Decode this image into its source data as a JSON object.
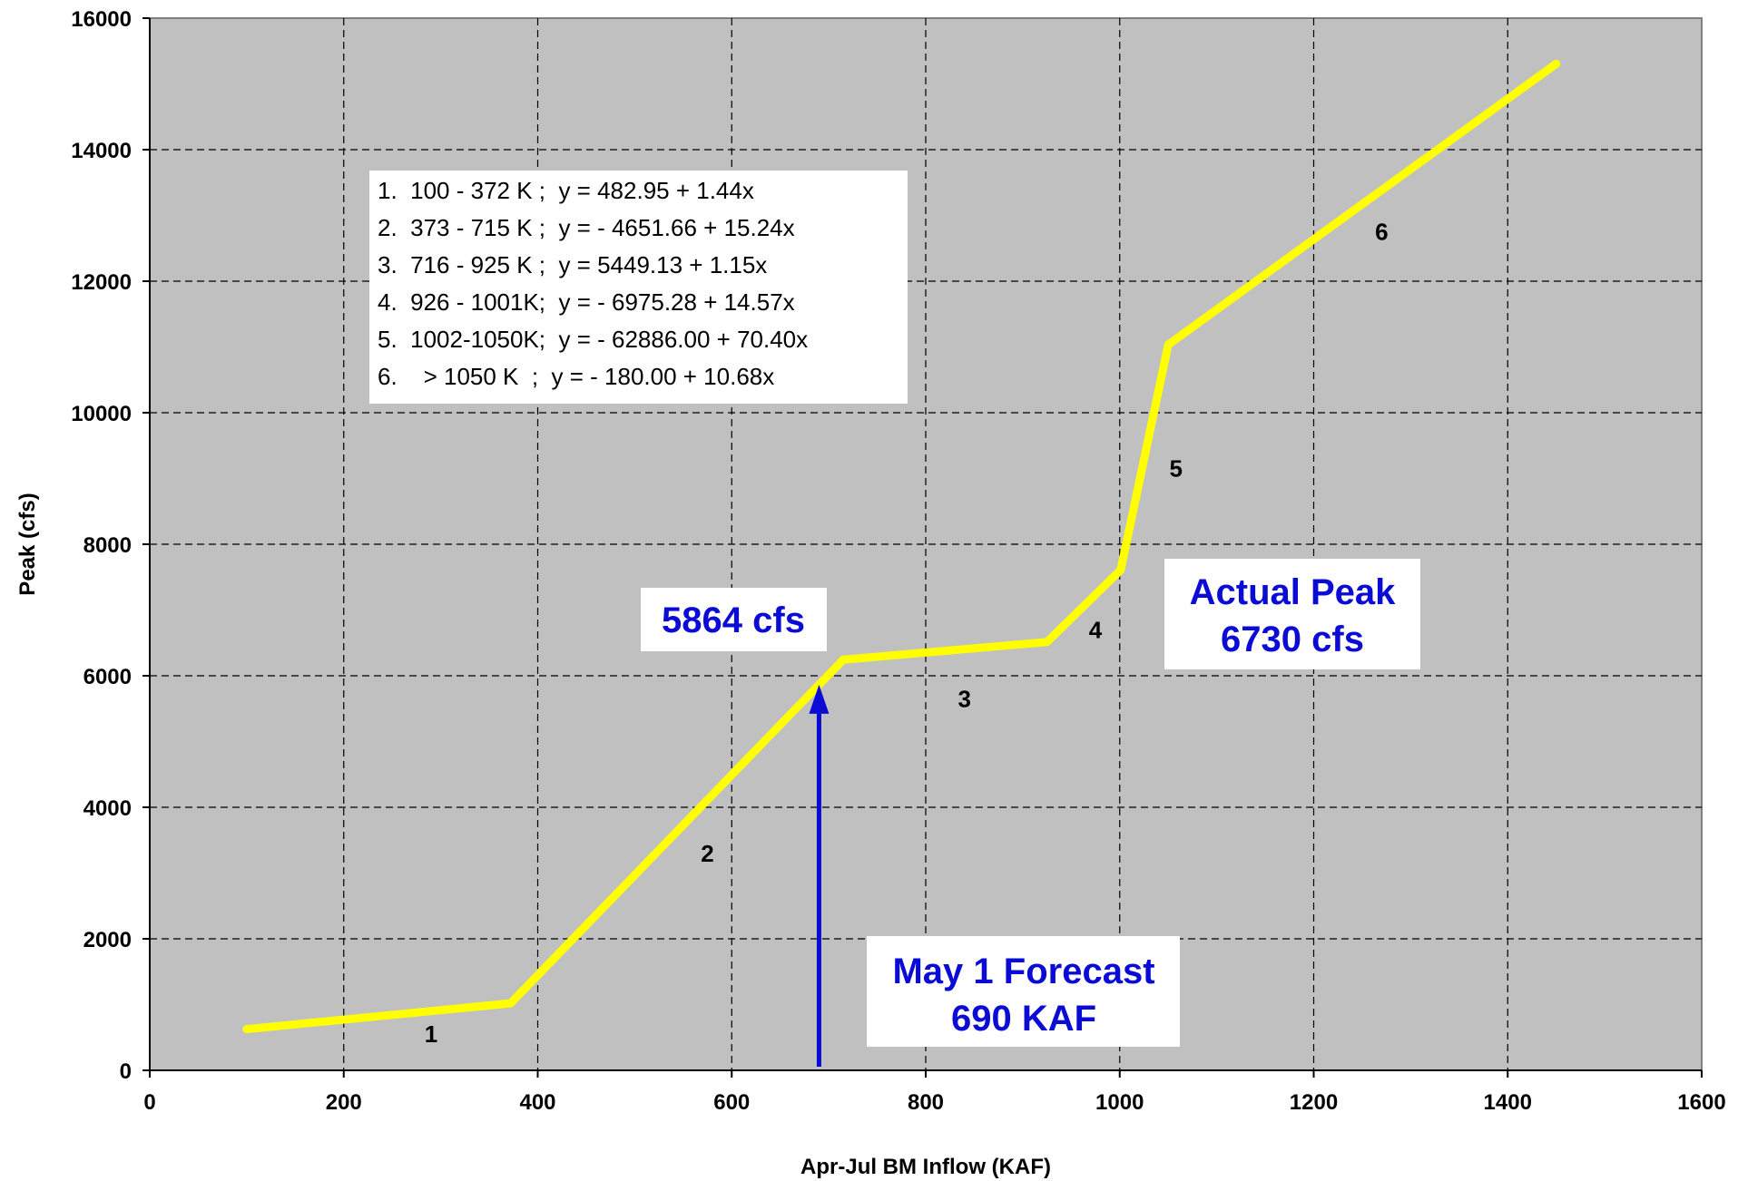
{
  "chart_data": {
    "type": "line",
    "xlabel": "Apr-Jul BM Inflow (KAF)",
    "ylabel": "Peak (cfs)",
    "xlim": [
      0,
      1600
    ],
    "ylim": [
      0,
      16000
    ],
    "xticks": [
      0,
      200,
      400,
      600,
      800,
      1000,
      1200,
      1400,
      1600
    ],
    "yticks": [
      0,
      2000,
      4000,
      6000,
      8000,
      10000,
      12000,
      14000,
      16000
    ],
    "grid": true,
    "plot_background": "#c0c0c0",
    "line_color": "#ffff00",
    "series": [
      {
        "x": [
          100,
          372,
          715,
          925,
          1001,
          1050,
          1450
        ],
        "y": [
          627,
          1019,
          6245,
          6513,
          7609,
          11034,
          15306
        ]
      }
    ],
    "segment_labels": [
      {
        "text": "1",
        "x": 290,
        "y": 550
      },
      {
        "text": "2",
        "x": 575,
        "y": 3300
      },
      {
        "text": "3",
        "x": 840,
        "y": 5650
      },
      {
        "text": "4",
        "x": 975,
        "y": 6700
      },
      {
        "text": "5",
        "x": 1058,
        "y": 9150
      },
      {
        "text": "6",
        "x": 1270,
        "y": 12750
      }
    ],
    "legend_lines": [
      "1.  100 - 372 K ;  y = 482.95 + 1.44x",
      "2.  373 - 715 K ;  y = - 4651.66 + 15.24x",
      "3.  716 - 925 K ;  y = 5449.13 + 1.15x",
      "4.  926 - 1001K;  y = - 6975.28 + 14.57x",
      "5.  1002-1050K;  y = - 62886.00 + 70.40x",
      "6.    > 1050 K  ;  y = - 180.00 + 10.68x"
    ],
    "annotations": {
      "forecast_value": "5864 cfs",
      "actual_peak_lines": [
        "Actual Peak",
        "6730 cfs"
      ],
      "forecast_lines": [
        "May 1 Forecast",
        "690 KAF"
      ],
      "arrow_x": 690,
      "arrow_y_from": 0,
      "arrow_y_to": 5864,
      "arrow_color": "#0b0bd6"
    }
  }
}
